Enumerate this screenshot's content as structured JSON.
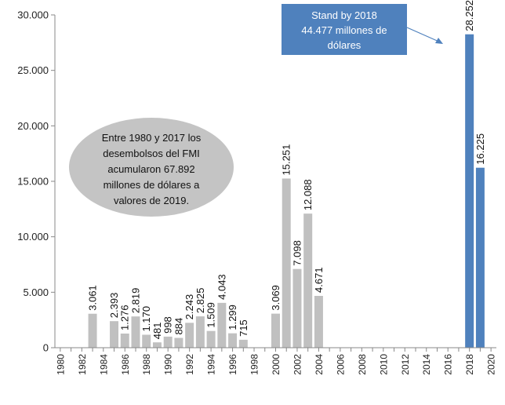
{
  "chart_data": {
    "type": "bar",
    "title": "",
    "xlabel": "",
    "ylabel": "",
    "ylim": [
      0,
      30000
    ],
    "y_ticks": [
      0,
      5000,
      10000,
      15000,
      20000,
      25000,
      30000
    ],
    "y_tick_labels": [
      "0",
      "5.000",
      "10.000",
      "15.000",
      "20.000",
      "25.000",
      "30.000"
    ],
    "x_ticks": [
      1980,
      1982,
      1984,
      1986,
      1988,
      1990,
      1992,
      1994,
      1996,
      1998,
      2000,
      2002,
      2004,
      2006,
      2008,
      2010,
      2012,
      2014,
      2016,
      2018,
      2020
    ],
    "x_tick_labels": [
      "1980",
      "1982",
      "1984",
      "1986",
      "1988",
      "1990",
      "1992",
      "1994",
      "1996",
      "1998",
      "2000",
      "2002",
      "2004",
      "2006",
      "2008",
      "2010",
      "2012",
      "2014",
      "2016",
      "2018",
      "2020"
    ],
    "x_range": [
      1979.5,
      2020.5
    ],
    "grid": false,
    "colors": {
      "disbursements": "#c0c0c0",
      "standby": "#4f81bd"
    },
    "bars": [
      {
        "year": 1983,
        "value": 3061,
        "label": "3.061",
        "group": "disbursements"
      },
      {
        "year": 1985,
        "value": 2393,
        "label": "2.393",
        "group": "disbursements"
      },
      {
        "year": 1986,
        "value": 1276,
        "label": "1.276",
        "group": "disbursements"
      },
      {
        "year": 1987,
        "value": 2819,
        "label": "2.819",
        "group": "disbursements"
      },
      {
        "year": 1988,
        "value": 1170,
        "label": "1.170",
        "group": "disbursements"
      },
      {
        "year": 1989,
        "value": 481,
        "label": "481",
        "group": "disbursements"
      },
      {
        "year": 1990,
        "value": 998,
        "label": "998",
        "group": "disbursements"
      },
      {
        "year": 1991,
        "value": 884,
        "label": "884",
        "group": "disbursements"
      },
      {
        "year": 1992,
        "value": 2243,
        "label": "2.243",
        "group": "disbursements"
      },
      {
        "year": 1993,
        "value": 2825,
        "label": "2.825",
        "group": "disbursements"
      },
      {
        "year": 1994,
        "value": 1509,
        "label": "1.509",
        "group": "disbursements"
      },
      {
        "year": 1995,
        "value": 4043,
        "label": "4.043",
        "group": "disbursements"
      },
      {
        "year": 1996,
        "value": 1299,
        "label": "1.299",
        "group": "disbursements"
      },
      {
        "year": 1997,
        "value": 715,
        "label": "715",
        "group": "disbursements"
      },
      {
        "year": 2000,
        "value": 3069,
        "label": "3.069",
        "group": "disbursements"
      },
      {
        "year": 2001,
        "value": 15251,
        "label": "15.251",
        "group": "disbursements"
      },
      {
        "year": 2002,
        "value": 7098,
        "label": "7.098",
        "group": "disbursements"
      },
      {
        "year": 2003,
        "value": 12088,
        "label": "12.088",
        "group": "disbursements"
      },
      {
        "year": 2004,
        "value": 4671,
        "label": "4.671",
        "group": "disbursements"
      },
      {
        "year": 2018,
        "value": 28252,
        "label": "28.252",
        "group": "standby"
      },
      {
        "year": 2019,
        "value": 16225,
        "label": "16.225",
        "group": "standby"
      }
    ],
    "annotations": {
      "ellipse_lines": [
        "Entre 1980 y 2017 los",
        "desembolsos del FMI",
        "acumularon 67.892",
        "millones de dólares a",
        "valores de 2019."
      ],
      "box_lines": [
        "Stand by 2018",
        "44.477 millones de",
        "dólares"
      ]
    }
  }
}
